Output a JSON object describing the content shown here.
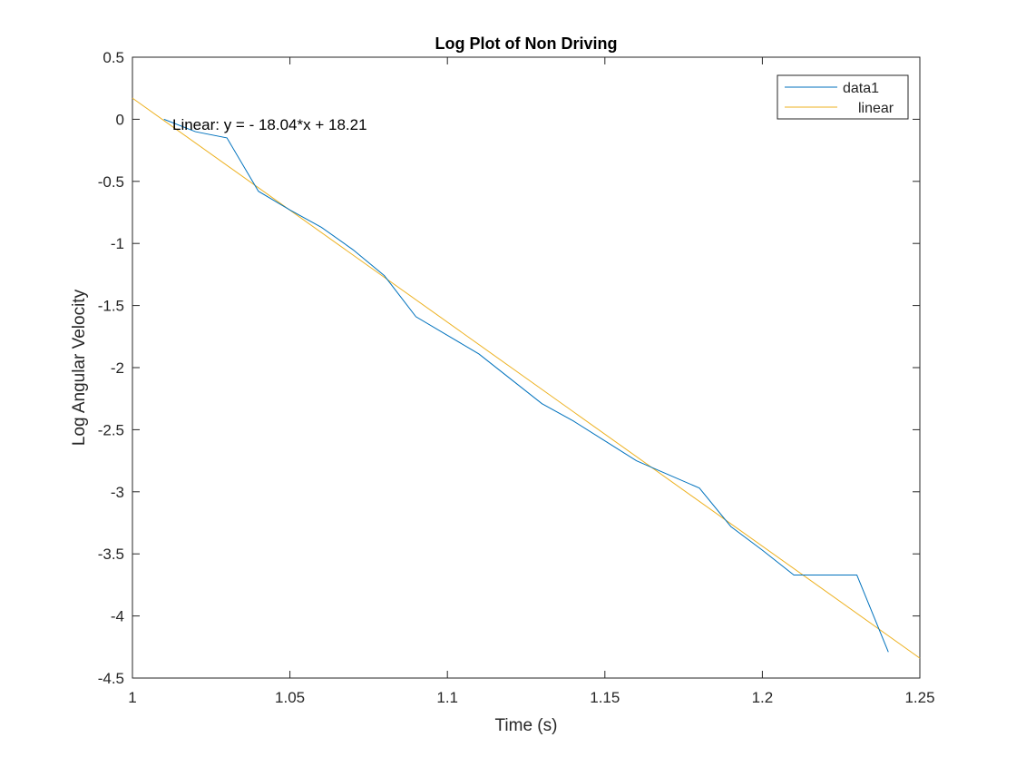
{
  "chart_data": {
    "type": "line",
    "title": "Log Plot of Non Driving",
    "xlabel": "Time (s)",
    "ylabel": "Log Angular Velocity",
    "xlim": [
      1,
      1.25
    ],
    "ylim": [
      -4.5,
      0.5
    ],
    "xticks": [
      1,
      1.05,
      1.1,
      1.15,
      1.2,
      1.25
    ],
    "xtick_labels": [
      "1",
      "1.05",
      "1.1",
      "1.15",
      "1.2",
      "1.25"
    ],
    "yticks": [
      0.5,
      0,
      -0.5,
      -1,
      -1.5,
      -2,
      -2.5,
      -3,
      -3.5,
      -4,
      -4.5
    ],
    "ytick_labels": [
      "0.5",
      "0",
      "-0.5",
      "-1",
      "-1.5",
      "-2",
      "-2.5",
      "-3",
      "-3.5",
      "-4",
      "-4.5"
    ],
    "grid": false,
    "legend_position": "top-right",
    "annotation": "Linear:  y = - 18.04*x + 18.21",
    "series": [
      {
        "name": "data1",
        "color": "#0072BD",
        "x": [
          1.01,
          1.02,
          1.03,
          1.04,
          1.05,
          1.06,
          1.07,
          1.08,
          1.09,
          1.1,
          1.11,
          1.12,
          1.13,
          1.14,
          1.15,
          1.16,
          1.17,
          1.18,
          1.19,
          1.2,
          1.21,
          1.22,
          1.23,
          1.24
        ],
        "y": [
          0.0,
          -0.1,
          -0.15,
          -0.58,
          -0.73,
          -0.87,
          -1.05,
          -1.26,
          -1.59,
          -1.74,
          -1.89,
          -2.09,
          -2.29,
          -2.43,
          -2.59,
          -2.75,
          -2.86,
          -2.97,
          -3.28,
          -3.47,
          -3.67,
          -3.67,
          -3.67,
          -4.29
        ]
      },
      {
        "name": "linear",
        "color": "#EDB120",
        "x": [
          1.0,
          1.25
        ],
        "y": [
          0.17,
          -4.34
        ]
      }
    ]
  }
}
